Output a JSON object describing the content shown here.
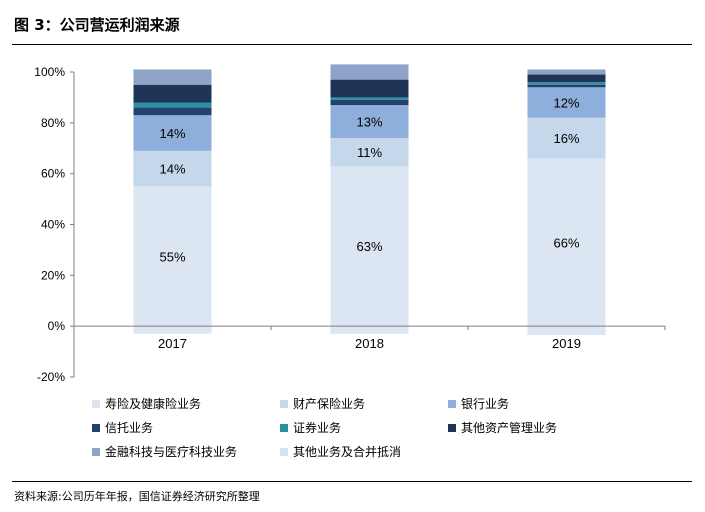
{
  "header": {
    "title": "图 3：公司营运利润来源"
  },
  "footer": {
    "source": "资料来源:公司历年年报，国信证券经济研究所整理"
  },
  "chart_data": {
    "type": "bar",
    "stacked": true,
    "categories": [
      "2017",
      "2018",
      "2019"
    ],
    "y_ticks": [
      "100%",
      "80%",
      "60%",
      "40%",
      "20%",
      "0%",
      "-20%"
    ],
    "ylim": [
      -20,
      100
    ],
    "legend_position": "bottom",
    "series": [
      {
        "name": "寿险及健康险业务",
        "color": "#dce6f2",
        "values": [
          55,
          63,
          66
        ],
        "labels": [
          "55%",
          "63%",
          "66%"
        ],
        "negative": [
          -3,
          -3,
          -3.5
        ]
      },
      {
        "name": "财产保险业务",
        "color": "#c5d7ea",
        "values": [
          14,
          11,
          16
        ],
        "labels": [
          "14%",
          "11%",
          "16%"
        ]
      },
      {
        "name": "银行业务",
        "color": "#8eaedb",
        "values": [
          14,
          13,
          12
        ],
        "labels": [
          "14%",
          "13%",
          "12%"
        ]
      },
      {
        "name": "信托业务",
        "color": "#24406e",
        "values": [
          3,
          2,
          1
        ],
        "labels": [
          "",
          "",
          ""
        ]
      },
      {
        "name": "证券业务",
        "color": "#2e8fa0",
        "values": [
          2,
          1,
          1
        ],
        "labels": [
          "",
          "",
          ""
        ]
      },
      {
        "name": "其他资产管理业务",
        "color": "#1f3557",
        "values": [
          7,
          7,
          3
        ],
        "labels": [
          "",
          "",
          ""
        ]
      },
      {
        "name": "金融科技与医疗科技业务",
        "color": "#8fa3c9",
        "values": [
          6,
          6,
          2
        ],
        "labels": [
          "",
          "",
          ""
        ]
      },
      {
        "name": "其他业务及合并抵消",
        "color": "#d6e2f0",
        "values": [
          0,
          0,
          0
        ],
        "labels": [
          "",
          "",
          ""
        ]
      }
    ]
  }
}
